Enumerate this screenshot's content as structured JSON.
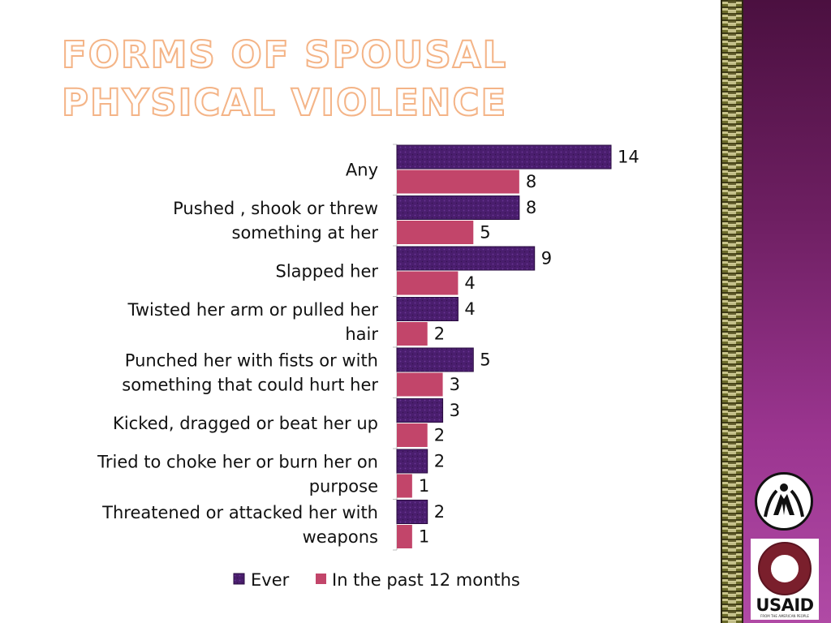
{
  "title": "FORMS OF SPOUSAL PHYSICAL VIOLENCE",
  "chart_data": {
    "type": "bar",
    "orientation": "horizontal",
    "categories": [
      "Any",
      "Pushed , shook or threw something at her",
      "Slapped her",
      "Twisted her arm or pulled her hair",
      "Punched her with fists or with something that could hurt her",
      "Kicked, dragged or beat her up",
      "Tried to choke her or burn her on purpose",
      "Threatened or attacked her with weapons"
    ],
    "category_lines": [
      [
        "Any"
      ],
      [
        "Pushed , shook or threw",
        "something at her"
      ],
      [
        "Slapped her"
      ],
      [
        "Twisted her arm or pulled her",
        "hair"
      ],
      [
        "Punched her with fists or with",
        "something that could hurt her"
      ],
      [
        "Kicked, dragged or beat her up"
      ],
      [
        "Tried to choke her or burn her on",
        "purpose"
      ],
      [
        "Threatened or attacked her with",
        "weapons"
      ]
    ],
    "series": [
      {
        "name": "Ever",
        "values": [
          14,
          8,
          9,
          4,
          5,
          3,
          2,
          2
        ],
        "color": "#4a1e6e"
      },
      {
        "name": "In the past 12 months",
        "values": [
          8,
          5,
          4,
          2,
          3,
          2,
          1,
          1
        ],
        "color": "#c2456a"
      }
    ],
    "xlim": [
      0,
      14
    ],
    "data_labels": true,
    "gridlines": false,
    "legend_position": "bottom"
  },
  "logos": {
    "usaid_word": "USAID",
    "usaid_tagline": "FROM THE AMERICAN PEOPLE"
  },
  "colors": {
    "title_outline": "#f4b487",
    "side_panel": "#7a2a6e"
  }
}
